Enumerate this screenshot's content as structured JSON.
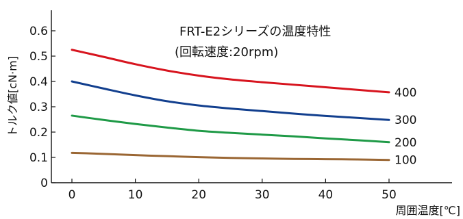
{
  "chart_data": {
    "type": "line",
    "title": "FRT-E2シリーズの温度特性",
    "subtitle": "(回転速度:20rpm)",
    "xlabel": "周囲温度[℃]",
    "ylabel": "トルク値[cN·m]",
    "xlim": [
      -5,
      60
    ],
    "ylim": [
      0,
      0.68
    ],
    "xticks": [
      0,
      10,
      20,
      30,
      40,
      50
    ],
    "xtick_labels": [
      "0",
      "10",
      "20",
      "30",
      "40",
      "50"
    ],
    "yticks": [
      0,
      0.1,
      0.2,
      0.3,
      0.4,
      0.5,
      0.6
    ],
    "ytick_labels": [
      "0",
      "0.1",
      "0.2",
      "0.3",
      "0.4",
      "0.5",
      "0.6"
    ],
    "grid": false,
    "series": [
      {
        "name": "400",
        "color": "#d7141e",
        "x": [
          0,
          5,
          10,
          15,
          20,
          25,
          30,
          35,
          40,
          45,
          50
        ],
        "values": [
          0.525,
          0.497,
          0.468,
          0.443,
          0.423,
          0.408,
          0.397,
          0.387,
          0.377,
          0.367,
          0.357
        ]
      },
      {
        "name": "300",
        "color": "#123f8e",
        "x": [
          0,
          5,
          10,
          15,
          20,
          25,
          30,
          35,
          40,
          45,
          50
        ],
        "values": [
          0.4,
          0.372,
          0.345,
          0.322,
          0.305,
          0.293,
          0.283,
          0.273,
          0.264,
          0.256,
          0.248
        ]
      },
      {
        "name": "200",
        "color": "#1f9a47",
        "x": [
          0,
          5,
          10,
          15,
          20,
          25,
          30,
          35,
          40,
          45,
          50
        ],
        "values": [
          0.265,
          0.248,
          0.232,
          0.218,
          0.205,
          0.197,
          0.19,
          0.183,
          0.175,
          0.168,
          0.16
        ]
      },
      {
        "name": "100",
        "color": "#9a6633",
        "x": [
          0,
          5,
          10,
          15,
          20,
          25,
          30,
          35,
          40,
          45,
          50
        ],
        "values": [
          0.118,
          0.114,
          0.109,
          0.105,
          0.101,
          0.098,
          0.096,
          0.094,
          0.093,
          0.092,
          0.09
        ]
      }
    ]
  }
}
